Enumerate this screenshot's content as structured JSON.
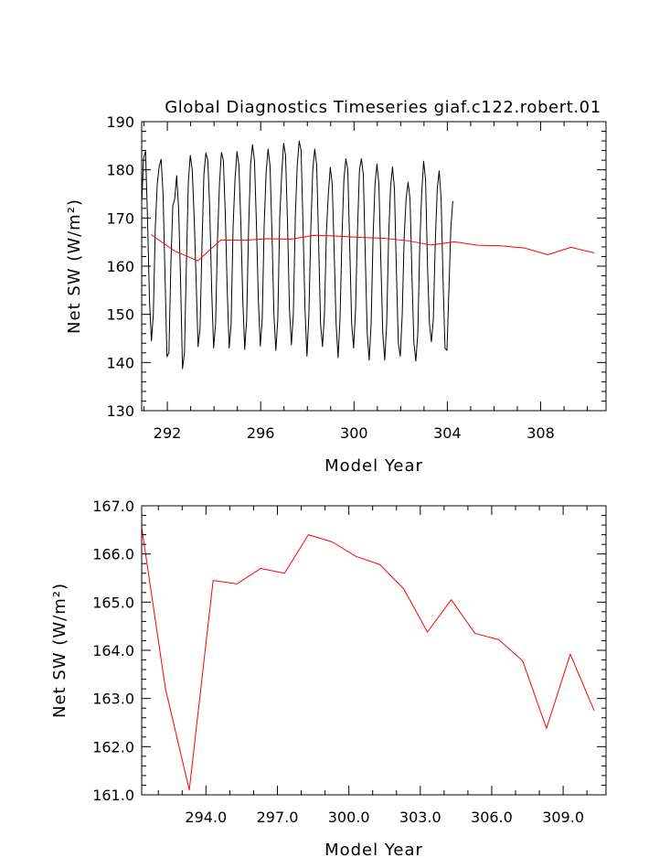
{
  "chart_data": [
    {
      "type": "line",
      "title": "Global Diagnostics Timeseries giaf.c122.robert.01",
      "xlabel": "Model Year",
      "ylabel": "Net SW (W/m²)",
      "xlim": [
        290.9,
        310.8
      ],
      "ylim": [
        130,
        190
      ],
      "x_ticks": [
        292,
        296,
        300,
        304,
        308
      ],
      "x_tick_labels": [
        "292",
        "296",
        "300",
        "304",
        "308"
      ],
      "y_ticks": [
        130,
        140,
        150,
        160,
        170,
        180,
        190
      ],
      "y_tick_labels": [
        "130",
        "140",
        "150",
        "160",
        "170",
        "180",
        "190"
      ],
      "grid": false,
      "series": [
        {
          "color": "#000000",
          "kind": "monthly",
          "start_year": 290.9,
          "months_per_year": 12,
          "values": [
            173.0,
            182.5,
            183.8,
            170.0,
            153.0,
            144.5,
            150.0,
            168.0,
            177.0,
            180.7,
            182.2,
            175.0,
            158.0,
            141.2,
            142.0,
            160.0,
            172.5,
            174.0,
            178.8,
            172.0,
            157.0,
            138.7,
            142.0,
            160.5,
            177.5,
            183.0,
            180.0,
            170.0,
            157.0,
            143.3,
            147.0,
            164.0,
            179.0,
            183.5,
            182.0,
            172.0,
            155.0,
            143.0,
            148.0,
            165.5,
            177.0,
            183.6,
            182.0,
            171.0,
            155.0,
            143.0,
            148.0,
            168.0,
            178.0,
            183.8,
            181.0,
            169.0,
            153.0,
            142.7,
            149.0,
            168.0,
            181.0,
            185.2,
            182.0,
            169.0,
            153.0,
            143.4,
            149.0,
            168.5,
            179.5,
            184.3,
            181.0,
            167.0,
            150.0,
            142.5,
            149.0,
            170.0,
            179.0,
            185.5,
            183.0,
            169.0,
            151.0,
            143.7,
            150.0,
            170.0,
            181.0,
            186.0,
            184.0,
            168.0,
            151.0,
            141.3,
            150.0,
            168.0,
            180.0,
            184.3,
            181.0,
            165.0,
            148.0,
            143.3,
            150.0,
            167.0,
            175.0,
            180.5,
            177.0,
            163.0,
            148.0,
            141.0,
            149.0,
            166.0,
            178.0,
            182.3,
            180.0,
            164.0,
            148.0,
            143.0,
            151.0,
            167.5,
            180.0,
            182.3,
            179.0,
            162.0,
            146.0,
            140.5,
            148.0,
            166.0,
            177.0,
            181.2,
            177.0,
            161.0,
            146.0,
            140.5,
            148.0,
            166.0,
            176.5,
            180.6,
            176.0,
            159.0,
            144.0,
            141.3,
            150.0,
            166.0,
            174.0,
            177.4,
            174.0,
            158.0,
            144.0,
            140.3,
            146.0,
            164.0,
            175.0,
            181.8,
            178.0,
            160.0,
            148.0,
            144.3,
            149.0,
            165.0,
            176.0,
            179.8,
            174.0,
            157.0,
            143.0,
            142.5,
            155.0,
            168.0,
            173.5
          ]
        },
        {
          "color": "#ff0000",
          "kind": "annual",
          "x": [
            291.3,
            292.3,
            293.3,
            294.3,
            295.3,
            296.3,
            297.3,
            298.3,
            299.3,
            300.3,
            301.3,
            302.3,
            303.3,
            304.3,
            305.3,
            306.3,
            307.3,
            308.3,
            309.3,
            310.3
          ],
          "values": [
            166.55,
            163.2,
            161.1,
            165.45,
            165.38,
            165.7,
            165.6,
            166.4,
            166.25,
            165.95,
            165.78,
            165.28,
            164.38,
            165.05,
            164.35,
            164.22,
            163.78,
            162.38,
            163.92,
            162.75
          ]
        }
      ]
    },
    {
      "type": "line",
      "title": "",
      "xlabel": "Model Year",
      "ylabel": "Net SW (W/m²)",
      "xlim": [
        291.3,
        310.8
      ],
      "ylim": [
        161.0,
        167.0
      ],
      "x_ticks": [
        294,
        297,
        300,
        303,
        306,
        309
      ],
      "x_tick_labels": [
        "294.0",
        "297.0",
        "300.0",
        "303.0",
        "306.0",
        "309.0"
      ],
      "y_ticks": [
        161,
        162,
        163,
        164,
        165,
        166,
        167
      ],
      "y_tick_labels": [
        "161.0",
        "162.0",
        "163.0",
        "164.0",
        "165.0",
        "166.0",
        "167.0"
      ],
      "grid": false,
      "series": [
        {
          "color": "#ff0000",
          "kind": "annual",
          "x": [
            291.3,
            292.3,
            293.3,
            294.3,
            295.3,
            296.3,
            297.3,
            298.3,
            299.3,
            300.3,
            301.3,
            302.3,
            303.3,
            304.3,
            305.3,
            306.3,
            307.3,
            308.3,
            309.3,
            310.3
          ],
          "values": [
            166.55,
            163.2,
            161.1,
            165.45,
            165.38,
            165.7,
            165.6,
            166.4,
            166.25,
            165.95,
            165.78,
            165.28,
            164.38,
            165.05,
            164.35,
            164.22,
            163.78,
            162.38,
            163.92,
            162.75
          ]
        }
      ]
    }
  ]
}
